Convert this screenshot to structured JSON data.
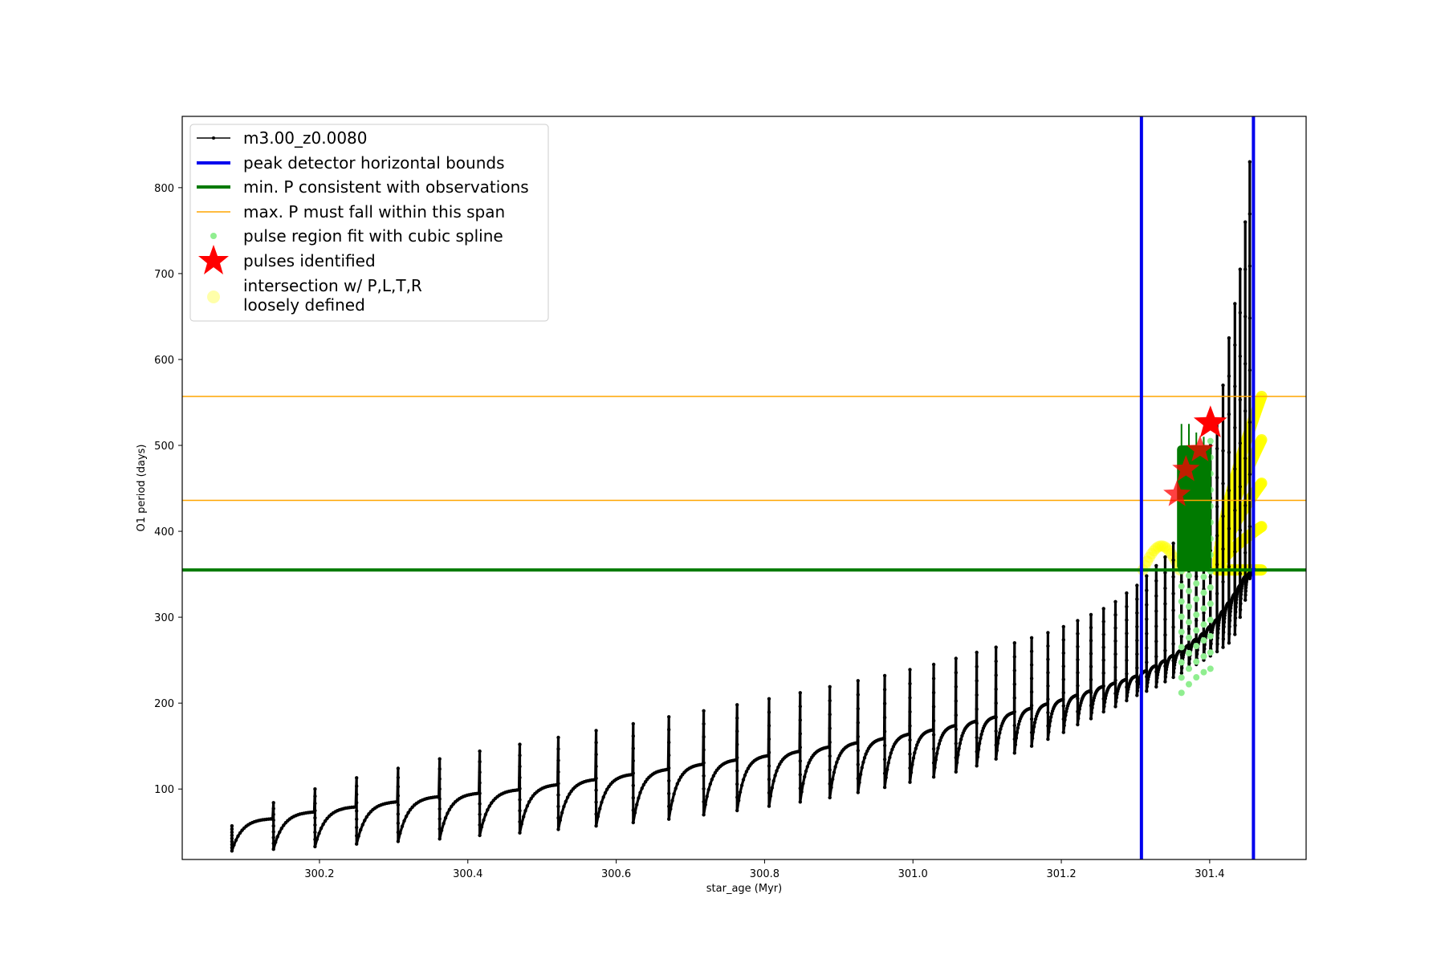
{
  "chart_data": {
    "type": "line",
    "xlabel": "star_age (Myr)",
    "ylabel": "O1 period (days)",
    "xlim": [
      300.015,
      301.53
    ],
    "ylim": [
      18,
      883
    ],
    "xticks": [
      "300.2",
      "300.4",
      "300.6",
      "300.8",
      "301.0",
      "301.2",
      "301.4"
    ],
    "yticks": [
      "100",
      "200",
      "300",
      "400",
      "500",
      "600",
      "700",
      "800"
    ],
    "legend_location": "upper left",
    "grid": false,
    "series": [
      {
        "name": "m3.00_z0.0080",
        "kind": "sawtooth-line",
        "color": "#000000",
        "pulse_ages": [
          300.082,
          300.138,
          300.194,
          300.25,
          300.306,
          300.362,
          300.416,
          300.47,
          300.522,
          300.573,
          300.623,
          300.671,
          300.718,
          300.763,
          300.806,
          300.848,
          300.888,
          300.926,
          300.962,
          300.996,
          301.028,
          301.058,
          301.086,
          301.112,
          301.137,
          301.16,
          301.182,
          301.203,
          301.222,
          301.24,
          301.257,
          301.273,
          301.288,
          301.302,
          301.315,
          301.328,
          301.34,
          301.351,
          301.362,
          301.372,
          301.382,
          301.392,
          301.401,
          301.41,
          301.418,
          301.426,
          301.434,
          301.441,
          301.448,
          301.454
        ],
        "pulse_min_period": [
          28,
          30,
          33,
          36,
          39,
          42,
          46,
          49,
          53,
          57,
          61,
          65,
          70,
          75,
          80,
          85,
          90,
          96,
          102,
          108,
          114,
          120,
          127,
          135,
          142,
          150,
          158,
          166,
          175,
          182,
          190,
          196,
          203,
          209,
          214,
          219,
          225,
          230,
          235,
          240,
          245,
          250,
          255,
          260,
          265,
          270,
          280,
          300,
          320,
          345
        ],
        "pulse_plateau_period": [
          66,
          74,
          80,
          86,
          92,
          96,
          100,
          106,
          112,
          118,
          124,
          130,
          135,
          140,
          145,
          150,
          155,
          160,
          165,
          170,
          175,
          180,
          185,
          190,
          195,
          200,
          205,
          210,
          215,
          220,
          224,
          228,
          232,
          238,
          244,
          250,
          256,
          262,
          268,
          275,
          282,
          290,
          298,
          308,
          318,
          328,
          338,
          348,
          352,
          356
        ],
        "pulse_peak_period": [
          57,
          84,
          100,
          113,
          124,
          135,
          144,
          152,
          160,
          168,
          176,
          184,
          191,
          198,
          205,
          212,
          219,
          226,
          232,
          239,
          245,
          252,
          259,
          265,
          270,
          276,
          282,
          289,
          296,
          303,
          310,
          318,
          328,
          337,
          348,
          360,
          370,
          386,
          405,
          425,
          450,
          470,
          500,
          530,
          570,
          625,
          665,
          705,
          760,
          830
        ]
      },
      {
        "name": "peak detector horizontal bounds",
        "kind": "vline",
        "color": "#0000ee",
        "x": [
          301.308,
          301.459
        ]
      },
      {
        "name": "min. P consistent with observations",
        "kind": "hline",
        "color": "#007a00",
        "y": 355
      },
      {
        "name": "max. P must fall within this span",
        "kind": "hline",
        "color": "#ffa500",
        "y": [
          436,
          557
        ]
      },
      {
        "name": "pulse region fit with cubic spline",
        "kind": "scatter",
        "color": "#90ee90",
        "x": [
          301.362,
          301.372,
          301.382,
          301.392,
          301.401
        ],
        "y_low": [
          212,
          222,
          230,
          236,
          240
        ],
        "y_high": [
          460,
          475,
          485,
          495,
          505
        ]
      },
      {
        "name": "pulses identified",
        "kind": "scatter-star",
        "color": "#ff0000",
        "x": [
          301.356,
          301.368,
          301.387,
          301.401
        ],
        "y": [
          443,
          472,
          495,
          526
        ]
      },
      {
        "name": "intersection w/ P,L,T,R\nloosely defined",
        "kind": "scatter",
        "color": "#ffff00",
        "region1_x": [
          301.31,
          301.36
        ],
        "region1_y": [
          355,
          383
        ],
        "region2_x": [
          301.41,
          301.47
        ],
        "region2_y": [
          355,
          557
        ]
      }
    ],
    "extra_marks": {
      "green_block_x": [
        301.356,
        301.402
      ],
      "green_block_y": [
        355,
        500
      ],
      "green_spike_x": [
        301.362,
        301.372,
        301.382,
        301.392,
        301.401
      ],
      "green_spike_y": [
        525,
        525,
        515,
        510,
        500
      ]
    }
  },
  "legend": {
    "items": [
      {
        "label": "m3.00_z0.0080",
        "marker": "line-dot",
        "color": "#000000"
      },
      {
        "label": "peak detector horizontal bounds",
        "marker": "thick-line",
        "color": "#0000ee"
      },
      {
        "label": "min. P consistent with observations",
        "marker": "thick-line",
        "color": "#007a00"
      },
      {
        "label": "max. P must fall within this span",
        "marker": "thin-line",
        "color": "#ffa500"
      },
      {
        "label": "pulse region fit with cubic spline",
        "marker": "dot",
        "color": "#90ee90"
      },
      {
        "label": "pulses identified",
        "marker": "star",
        "color": "#ff0000"
      },
      {
        "label": "intersection w/ P,L,T,R",
        "label2": "loosely defined",
        "marker": "big-dot",
        "color": "#ffffaa"
      }
    ]
  }
}
